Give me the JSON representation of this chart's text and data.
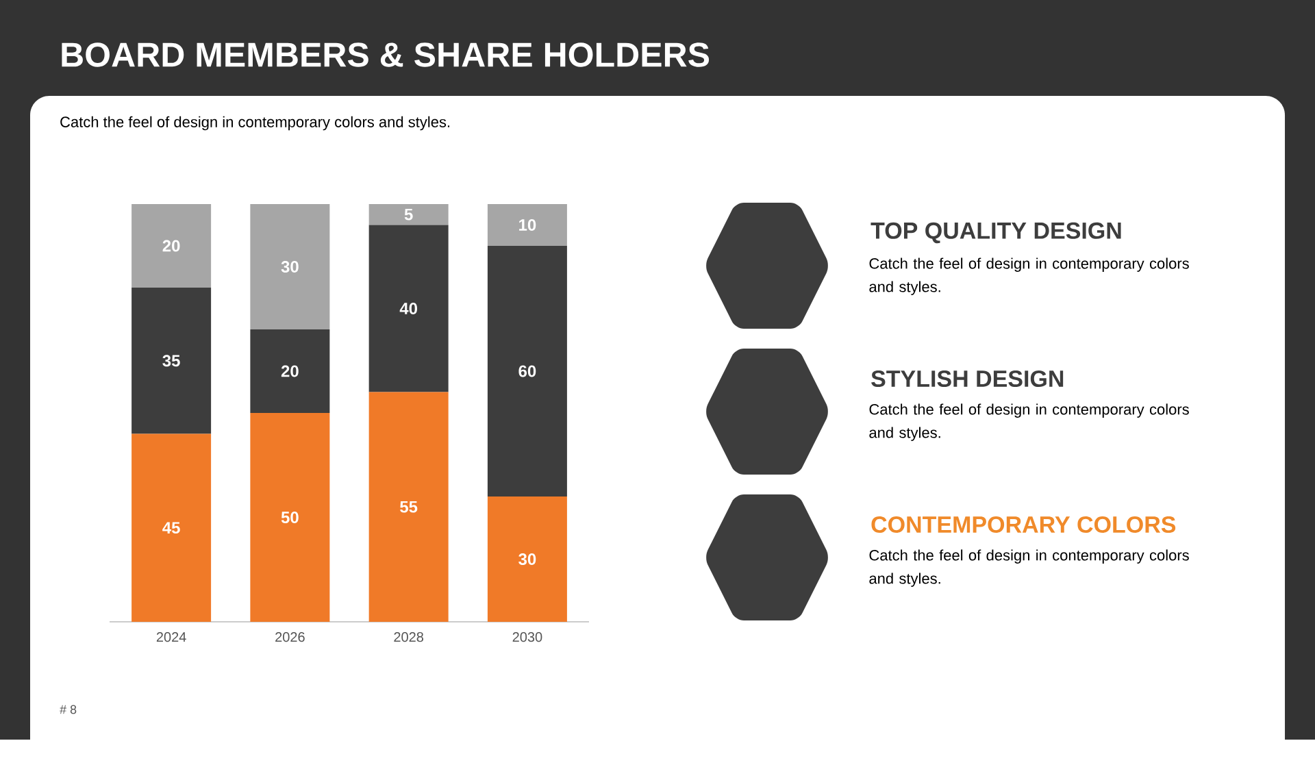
{
  "chart_data": [
    {
      "type": "bar",
      "title": "BOARD MEMBERS & SHARE HOLDERS",
      "subtitle": "Catch the feel of design in contemporary colors and styles.",
      "categories": [
        "2024",
        "2026",
        "2028",
        "2030"
      ],
      "stacked": true,
      "data_labels": true,
      "series": [
        {
          "color": "#f07a28",
          "values": [
            45,
            50,
            55,
            30
          ]
        },
        {
          "color": "#3d3d3d",
          "values": [
            35,
            20,
            40,
            60
          ]
        },
        {
          "color": "#a6a6a6",
          "values": [
            20,
            30,
            5,
            10
          ]
        }
      ],
      "annotations": [
        "# 8"
      ]
    },
    {
      "type": "other",
      "annotations": [
        "TOP QUALITY DESIGN",
        "Catch the feel of design in contemporary colors and styles.",
        "STYLISH DESIGN",
        "Catch the feel of design in contemporary colors and styles.",
        "CONTEMPORARY  COLORS",
        "Catch the feel of design in contemporary colors and styles."
      ]
    }
  ]
}
